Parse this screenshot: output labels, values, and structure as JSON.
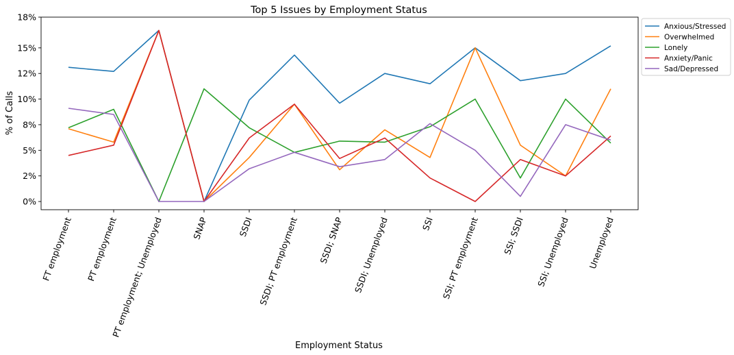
{
  "chart_data": {
    "type": "line",
    "title": "Top 5 Issues by Employment Status",
    "xlabel": "Employment Status",
    "ylabel": "% of Calls",
    "categories": [
      "FT employment",
      "PT employment",
      "PT employment; Unemployed",
      "SNAP",
      "SSDI",
      "SSDI; PT employment",
      "SSDI; SNAP",
      "SSDI; Unemployed",
      "SSI",
      "SSI; PT employment",
      "SSI; SSDI",
      "SSI; Unemployed",
      "Unemployed"
    ],
    "ylim": [
      -0.8,
      18.0
    ],
    "yticks": [
      0,
      2.5,
      5,
      7.5,
      10,
      12.5,
      15,
      18
    ],
    "ytick_labels": [
      "0%",
      "2%",
      "5%",
      "8%",
      "10%",
      "12%",
      "15%",
      "18%"
    ],
    "grid": false,
    "legend_position": "outside-top-right",
    "series": [
      {
        "name": "Anxious/Stressed",
        "color": "#1f77b4",
        "values": [
          13.1,
          12.7,
          16.7,
          0.0,
          9.9,
          14.3,
          9.6,
          12.5,
          11.5,
          15.0,
          11.8,
          12.5,
          15.2
        ]
      },
      {
        "name": "Overwhelmed",
        "color": "#ff7f0e",
        "values": [
          7.1,
          5.8,
          16.7,
          0.0,
          4.3,
          9.5,
          3.1,
          7.0,
          4.3,
          15.0,
          5.5,
          2.5,
          11.0
        ]
      },
      {
        "name": "Lonely",
        "color": "#2ca02c",
        "values": [
          7.2,
          9.0,
          0.0,
          11.0,
          7.2,
          4.8,
          5.9,
          5.8,
          7.3,
          10.0,
          2.3,
          10.0,
          5.7
        ]
      },
      {
        "name": "Anxiety/Panic",
        "color": "#d62728",
        "values": [
          4.5,
          5.5,
          16.7,
          0.0,
          6.2,
          9.5,
          4.2,
          6.2,
          2.3,
          0.0,
          4.1,
          2.5,
          6.4
        ]
      },
      {
        "name": "Sad/Depressed",
        "color": "#9467bd",
        "values": [
          9.1,
          8.5,
          0.0,
          0.0,
          3.2,
          4.8,
          3.4,
          4.1,
          7.6,
          5.0,
          0.5,
          7.5,
          6.0
        ]
      }
    ]
  }
}
